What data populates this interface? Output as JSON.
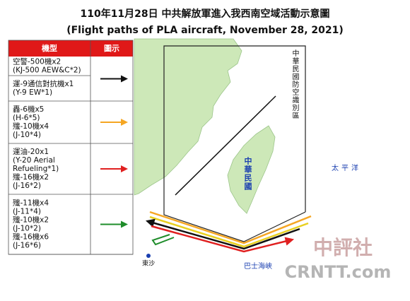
{
  "header": {
    "title": "110年11月28日 中共解放軍進入我西南空域活動示意圖",
    "subtitle": "(Flight paths of PLA aircraft, November 28, 2021)"
  },
  "legend": {
    "columns": [
      "機型",
      "圖示"
    ],
    "rows": [
      {
        "lines": [
          "空警-500機x2",
          "(KJ-500 AEW&C*2)"
        ],
        "color": "#111111"
      },
      {
        "lines": [
          "運-9通信對抗機x1",
          "(Y-9 EW*1)"
        ],
        "color": "#111111"
      },
      {
        "lines": [
          "轟-6機x5",
          "(H-6*5)",
          "殲-10機x4",
          "(J-10*4)"
        ],
        "color": "#f5a623"
      },
      {
        "lines": [
          "運油-20x1",
          "(Y-20 Aerial",
          "Refueling*1)",
          "殲-16機x2",
          "(J-16*2)"
        ],
        "color": "#e02020"
      },
      {
        "lines": [
          "殲-11機x4",
          "(J-11*4)",
          "殲-10機x2",
          "(J-10*2)",
          "殲-16機x6",
          "(J-16*6)"
        ],
        "color": "#1e8c2a"
      }
    ]
  },
  "map": {
    "adiz_label": "中華民國防空識別區",
    "taiwan_label": "中華民國",
    "pacific_label": "太平洋",
    "strait_label": "巴士海峽",
    "dongsha_label": "東沙"
  },
  "watermark": {
    "top": "中評社",
    "bottom": "CRNTT.com"
  }
}
